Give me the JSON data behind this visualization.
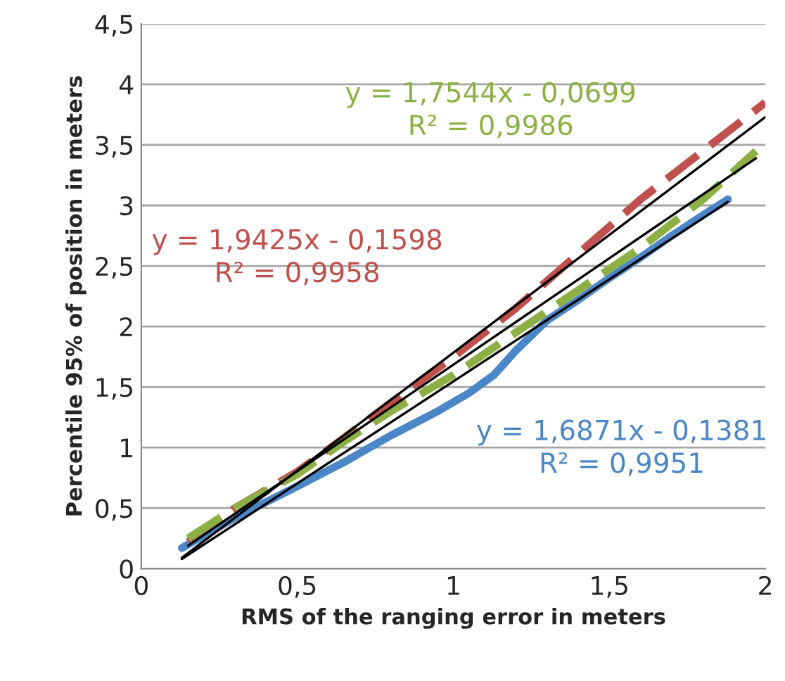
{
  "chart_data": {
    "type": "line",
    "xlabel": "RMS of the ranging error in meters",
    "ylabel": "Percentile 95% of position in meters",
    "xlim": [
      0,
      2
    ],
    "ylim": [
      0,
      4.5
    ],
    "xticks": [
      0,
      {
        "value": 0.5,
        "label": "0,5"
      },
      1,
      {
        "value": 1.5,
        "label": "1,5"
      },
      2
    ],
    "yticks": [
      0,
      {
        "value": 0.5,
        "label": "0,5"
      },
      1,
      {
        "value": 1.5,
        "label": "1,5"
      },
      2,
      {
        "value": 2.5,
        "label": "2,5"
      },
      3,
      {
        "value": 3.5,
        "label": "3,5"
      },
      4,
      {
        "value": 4.5,
        "label": "4,5"
      }
    ],
    "grid": "y",
    "legend": false,
    "series": [
      {
        "color": "#4a86c8",
        "line_style": "solid",
        "x": [
          0.13,
          0.3,
          0.5,
          0.65,
          0.8,
          0.95,
          1.05,
          1.13,
          1.2,
          1.3,
          1.4,
          1.5,
          1.6,
          1.7,
          1.8,
          1.88
        ],
        "values": [
          0.17,
          0.42,
          0.68,
          0.88,
          1.1,
          1.3,
          1.45,
          1.6,
          1.8,
          2.05,
          2.22,
          2.4,
          2.57,
          2.75,
          2.92,
          3.05
        ]
      },
      {
        "color": "#c0504d",
        "line_style": "dashed",
        "x": [
          0.15,
          0.3,
          0.5,
          0.65,
          0.8,
          1.0,
          1.2,
          1.4,
          1.6,
          1.8,
          2.0
        ],
        "values": [
          0.22,
          0.5,
          0.8,
          1.08,
          1.37,
          1.75,
          2.15,
          2.6,
          3.05,
          3.45,
          3.85
        ]
      },
      {
        "color": "#8db045",
        "line_style": "dashed",
        "x": [
          0.15,
          0.3,
          0.5,
          0.65,
          0.8,
          1.0,
          1.2,
          1.4,
          1.6,
          1.8,
          1.97
        ],
        "values": [
          0.25,
          0.5,
          0.78,
          1.05,
          1.3,
          1.6,
          1.95,
          2.3,
          2.65,
          3.05,
          3.45
        ]
      },
      {
        "color": "#000000",
        "line_style": "solid",
        "x": [
          0.13,
          2.0
        ],
        "values": [
          0.09,
          3.73
        ]
      },
      {
        "color": "#000000",
        "line_style": "solid",
        "x": [
          0.15,
          1.97
        ],
        "values": [
          0.19,
          3.39
        ]
      },
      {
        "color": "#000000",
        "line_style": "solid",
        "x": [
          0.13,
          1.88
        ],
        "values": [
          0.08,
          3.03
        ]
      }
    ],
    "annotations": [
      "y = 1,6871x - 0,1381\nR² = 0,9951",
      "y = 1,9425x - 0,1598\nR² = 0,9958",
      "y = 1,7544x - 0,0699\nR² = 0,9986"
    ]
  }
}
